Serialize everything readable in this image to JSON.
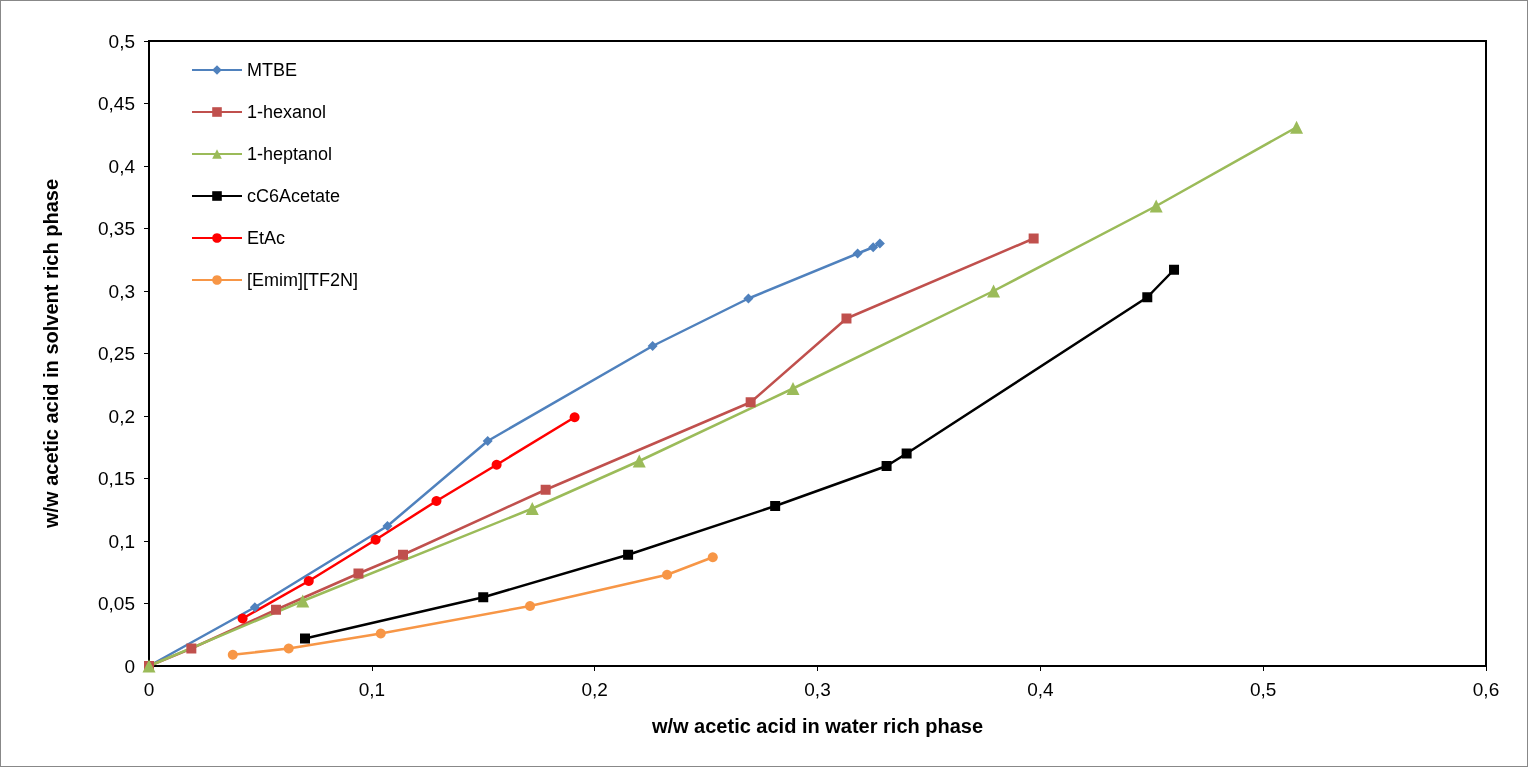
{
  "chart_data": {
    "type": "line",
    "xlabel": "w/w acetic acid in water rich phase",
    "ylabel": "w/w acetic acid in solvent rich phase",
    "xlim": [
      0,
      0.6
    ],
    "ylim": [
      0,
      0.5
    ],
    "xticks": [
      0,
      {
        "value": 0.1,
        "label": "0,1"
      },
      {
        "value": 0.2,
        "label": "0,2"
      },
      {
        "value": 0.3,
        "label": "0,3"
      },
      {
        "value": 0.4,
        "label": "0,4"
      },
      {
        "value": 0.5,
        "label": "0,5"
      },
      {
        "value": 0.6,
        "label": "0,6"
      }
    ],
    "yticks": [
      0,
      {
        "value": 0.05,
        "label": "0,05"
      },
      {
        "value": 0.1,
        "label": "0,1"
      },
      {
        "value": 0.15,
        "label": "0,15"
      },
      {
        "value": 0.2,
        "label": "0,2"
      },
      {
        "value": 0.25,
        "label": "0,25"
      },
      {
        "value": 0.3,
        "label": "0,3"
      },
      {
        "value": 0.35,
        "label": "0,35"
      },
      {
        "value": 0.4,
        "label": "0,4"
      },
      {
        "value": 0.45,
        "label": "0,45"
      },
      {
        "value": 0.5,
        "label": "0,5"
      }
    ],
    "grid": false,
    "legend": "top left",
    "line_style": "solid",
    "series": [
      {
        "name": "MTBE",
        "color": "#4f81bd",
        "marker": "diamond",
        "x": [
          0,
          0.0475,
          0.107,
          0.152,
          0.226,
          0.269,
          0.318,
          0.325,
          0.328
        ],
        "values": [
          0,
          0.047,
          0.112,
          0.18,
          0.256,
          0.294,
          0.33,
          0.335,
          0.338
        ]
      },
      {
        "name": "1-hexanol",
        "color": "#c0504d",
        "marker": "square",
        "x": [
          0,
          0.019,
          0.057,
          0.094,
          0.114,
          0.178,
          0.27,
          0.313,
          0.397
        ],
        "values": [
          0,
          0.014,
          0.045,
          0.074,
          0.089,
          0.141,
          0.211,
          0.278,
          0.342
        ]
      },
      {
        "name": "1-heptanol",
        "color": "#9bbb59",
        "marker": "triangle",
        "x": [
          0,
          0.069,
          0.172,
          0.22,
          0.289,
          0.379,
          0.452,
          0.515
        ],
        "values": [
          0,
          0.052,
          0.126,
          0.164,
          0.222,
          0.3,
          0.368,
          0.431
        ]
      },
      {
        "name": "cC6Acetate",
        "color": "#000000",
        "marker": "square",
        "x": [
          0.07,
          0.15,
          0.215,
          0.281,
          0.331,
          0.34,
          0.448,
          0.46
        ],
        "values": [
          0.022,
          0.055,
          0.089,
          0.128,
          0.16,
          0.17,
          0.295,
          0.317
        ]
      },
      {
        "name": "EtAc",
        "color": "#ff0000",
        "marker": "circle",
        "x": [
          0.042,
          0.0717,
          0.1017,
          0.129,
          0.156,
          0.191
        ],
        "values": [
          0.038,
          0.068,
          0.101,
          0.132,
          0.161,
          0.199
        ]
      },
      {
        "name": "[Emim][TF2N]",
        "color": "#f79646",
        "marker": "circle",
        "x": [
          0.0376,
          0.0627,
          0.104,
          0.171,
          0.2325,
          0.253
        ],
        "values": [
          0.009,
          0.014,
          0.026,
          0.048,
          0.073,
          0.087
        ]
      }
    ]
  }
}
